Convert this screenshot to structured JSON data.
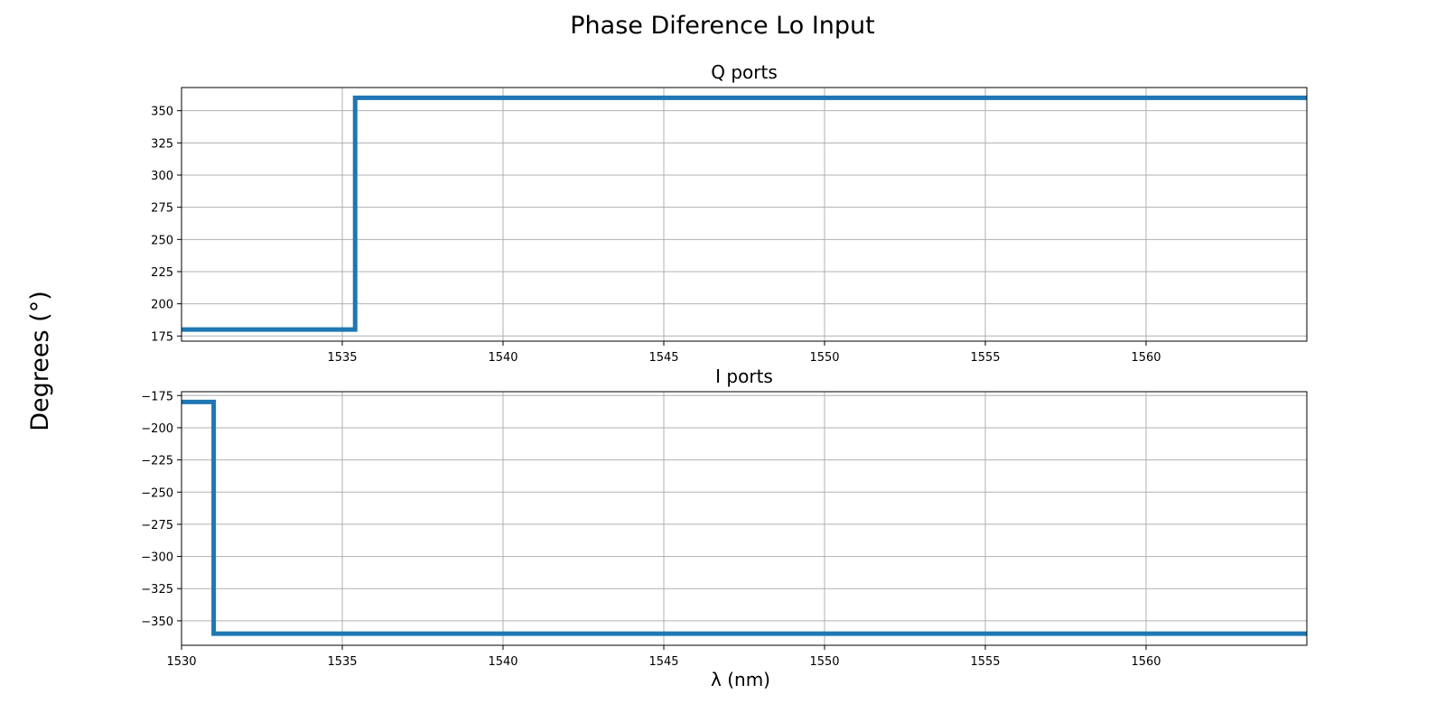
{
  "figure": {
    "suptitle": "Phase Diference Lo Input",
    "ylabel": "Degrees (°)",
    "xlabel": "λ (nm)"
  },
  "colors": {
    "line": "#1f77b4",
    "grid": "#b0b0b0",
    "axis": "#000000"
  },
  "chart_data": [
    {
      "type": "line",
      "title": "Q ports",
      "xlim": [
        1530,
        1565
      ],
      "ylim": [
        171,
        368
      ],
      "xticks": [
        1535,
        1540,
        1545,
        1550,
        1555,
        1560
      ],
      "yticks": [
        175,
        200,
        225,
        250,
        275,
        300,
        325,
        350
      ],
      "ytick_labels": [
        "175",
        "200",
        "225",
        "250",
        "275",
        "300",
        "325",
        "350"
      ],
      "grid": true,
      "series": [
        {
          "x": [
            1530,
            1535.4,
            1535.4,
            1565
          ],
          "y": [
            180,
            180,
            360,
            360
          ]
        }
      ]
    },
    {
      "type": "line",
      "title": "I ports",
      "xlim": [
        1530,
        1565
      ],
      "ylim": [
        -369,
        -172
      ],
      "xticks": [
        1530,
        1535,
        1540,
        1545,
        1550,
        1555,
        1560
      ],
      "yticks": [
        -175,
        -200,
        -225,
        -250,
        -275,
        -300,
        -325,
        -350
      ],
      "ytick_labels": [
        "−175",
        "−200",
        "−225",
        "−250",
        "−275",
        "−300",
        "−325",
        "−350"
      ],
      "grid": true,
      "series": [
        {
          "x": [
            1530,
            1531,
            1531,
            1565
          ],
          "y": [
            -180,
            -180,
            -360,
            -360
          ]
        }
      ]
    }
  ]
}
